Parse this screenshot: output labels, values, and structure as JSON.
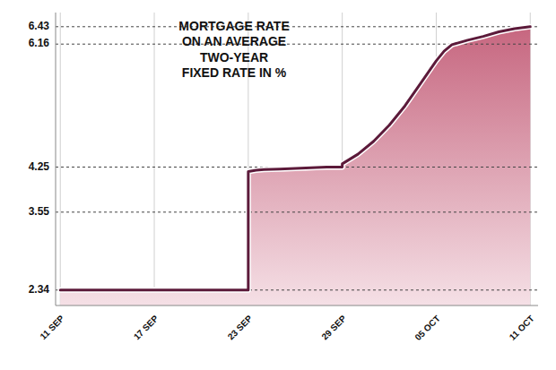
{
  "chart_data": {
    "type": "area",
    "title": "MORTGAGE RATE\nON AN AVERAGE\nTWO-YEAR\nFIXED RATE IN %",
    "x": [
      0,
      12,
      12.001,
      12.5,
      13,
      14,
      15,
      16,
      17,
      18,
      18.001,
      19,
      20,
      21,
      22,
      23,
      24,
      24.5,
      25,
      26,
      27,
      28,
      29,
      30
    ],
    "values": [
      2.34,
      2.34,
      4.18,
      4.2,
      4.21,
      4.22,
      4.23,
      4.24,
      4.25,
      4.25,
      4.3,
      4.45,
      4.65,
      4.9,
      5.2,
      5.55,
      5.9,
      6.05,
      6.15,
      6.22,
      6.28,
      6.35,
      6.4,
      6.43
    ],
    "color": "#5c1a3a",
    "xlim": [
      -0.3,
      30.5
    ],
    "xticks": [
      {
        "value": 0,
        "label": "11 SEP"
      },
      {
        "value": 6,
        "label": "17 SEP"
      },
      {
        "value": 12,
        "label": "23 SEP"
      },
      {
        "value": 18,
        "label": "29 SEP"
      },
      {
        "value": 24,
        "label": "05 OCT"
      },
      {
        "value": 30,
        "label": "11 OCT"
      }
    ],
    "ylim": [
      2.1,
      6.65
    ],
    "yticks": [
      2.34,
      3.55,
      4.25,
      6.16,
      6.43
    ],
    "grid": true
  }
}
